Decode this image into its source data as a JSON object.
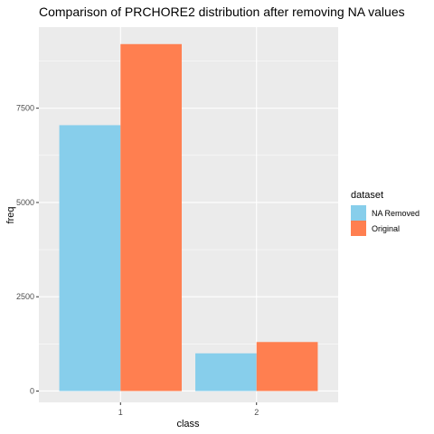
{
  "chart_data": {
    "type": "bar",
    "title": "Comparison of PRCHORE2 distribution after removing NA values",
    "xlabel": "class",
    "ylabel": "freq",
    "categories": [
      "1",
      "2"
    ],
    "series": [
      {
        "name": "NA Removed",
        "color": "#87CEEB",
        "values": [
          7050,
          1000
        ]
      },
      {
        "name": "Original",
        "color": "#FF7F50",
        "values": [
          9200,
          1300
        ]
      }
    ],
    "ylim": [
      -300,
      9650
    ],
    "yticks": [
      0,
      2500,
      5000,
      7500
    ],
    "ytick_labels": [
      "0",
      "2500",
      "5000",
      "7500"
    ],
    "grid": true,
    "legend": {
      "title": "dataset",
      "position": "right"
    },
    "panel_background": "#EBEBEB",
    "grid_color": "#FFFFFF"
  }
}
